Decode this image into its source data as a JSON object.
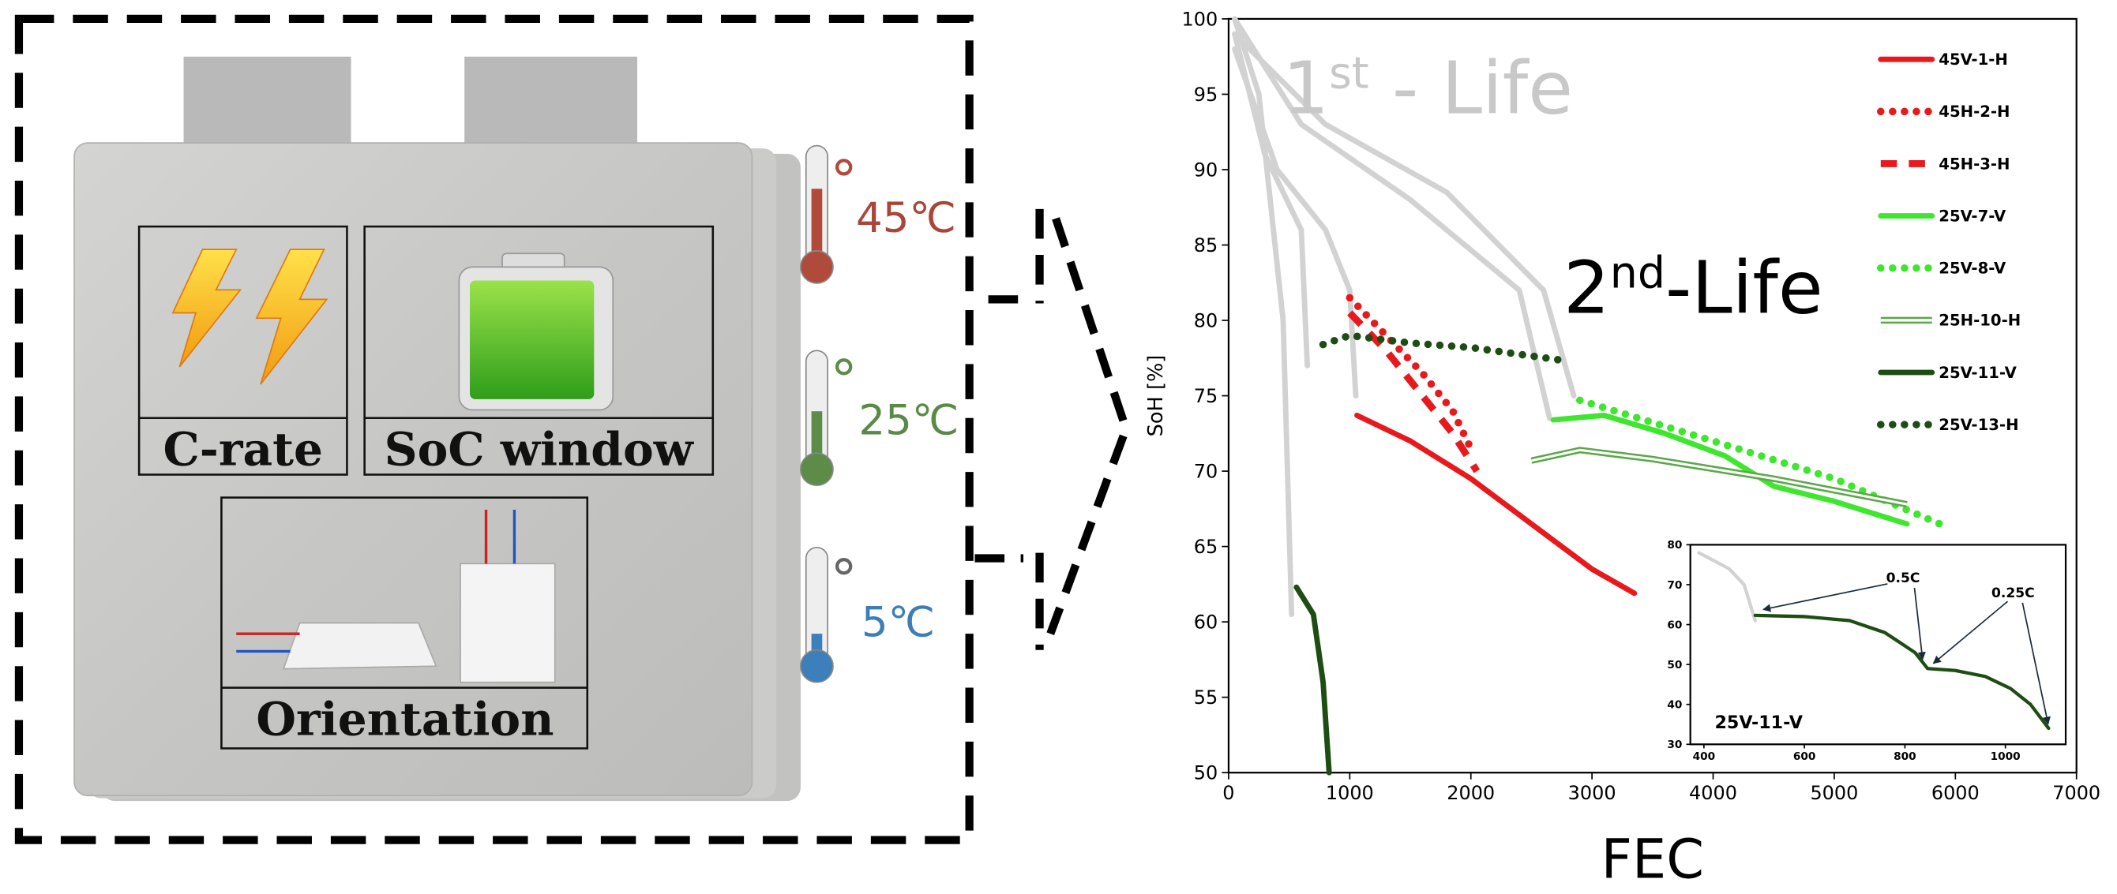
{
  "panel": {
    "factors": [
      "C-rate",
      "SoC window",
      "Orientation"
    ],
    "temperatures": [
      "45℃",
      "25℃",
      "5℃"
    ]
  },
  "chart_data": [
    {
      "type": "line",
      "xlabel": "FEC",
      "ylabel": "SoH [%]",
      "xlim": [
        0,
        7000
      ],
      "ylim": [
        50,
        100
      ],
      "xticks": [
        0,
        1000,
        2000,
        3000,
        4000,
        5000,
        6000,
        7000
      ],
      "yticks": [
        50,
        55,
        60,
        65,
        70,
        75,
        80,
        85,
        90,
        95,
        100
      ],
      "legend": "upper right",
      "annotations": [
        {
          "parts": [
            "1",
            "st",
            " - Life"
          ]
        },
        {
          "parts": [
            "2",
            "nd",
            "-Life"
          ]
        }
      ],
      "series": [
        {
          "color": "#d2d2d2",
          "style": "solid",
          "x": [
            50,
            250,
            450,
            520
          ],
          "values": [
            100,
            95,
            80,
            60.5
          ]
        },
        {
          "color": "#d2d2d2",
          "style": "solid",
          "x": [
            50,
            300,
            600,
            650
          ],
          "values": [
            99,
            91,
            86,
            77
          ]
        },
        {
          "color": "#d2d2d2",
          "style": "solid",
          "x": [
            50,
            400,
            800,
            1000,
            1050
          ],
          "values": [
            98,
            90,
            86,
            82,
            75
          ]
        },
        {
          "color": "#d2d2d2",
          "style": "solid",
          "x": [
            50,
            600,
            1500,
            2400,
            2650
          ],
          "values": [
            100,
            93,
            88,
            82,
            73.5
          ]
        },
        {
          "color": "#d2d2d2",
          "style": "solid",
          "x": [
            50,
            800,
            1800,
            2600,
            2850
          ],
          "values": [
            99,
            93,
            88.5,
            82,
            75
          ]
        },
        {
          "name": "45V-1-H",
          "color": "#e8191c",
          "style": "solid",
          "x": [
            1060,
            1500,
            2000,
            2500,
            3000,
            3350
          ],
          "values": [
            73.7,
            72,
            69.5,
            66.5,
            63.5,
            61.9
          ]
        },
        {
          "name": "45H-2-H",
          "color": "#e8191c",
          "style": "dotted",
          "x": [
            1000,
            1300,
            1600,
            1850,
            2000
          ],
          "values": [
            81.5,
            79,
            76.5,
            74,
            71.5
          ]
        },
        {
          "name": "45H-3-H",
          "color": "#e8191c",
          "style": "dashed",
          "x": [
            1000,
            1300,
            1600,
            1850,
            2050
          ],
          "values": [
            80.5,
            78,
            75,
            72.5,
            70
          ]
        },
        {
          "name": "25V-7-V",
          "color": "#3ee62e",
          "style": "solid",
          "x": [
            2680,
            3100,
            3600,
            4100,
            4500,
            5000,
            5600
          ],
          "values": [
            73.4,
            73.7,
            72.5,
            71,
            69,
            68,
            66.5
          ]
        },
        {
          "name": "25V-8-V",
          "color": "#3ee62e",
          "style": "dotted",
          "x": [
            2900,
            4000,
            5000,
            5900
          ],
          "values": [
            74.7,
            72,
            69.5,
            66.4
          ]
        },
        {
          "name": "25H-10-H",
          "color": "#5aa84a",
          "style": "double",
          "x": [
            2500,
            2900,
            3500,
            4500,
            5600
          ],
          "values": [
            70.7,
            71.4,
            70.8,
            69.5,
            67.8
          ]
        },
        {
          "name": "25V-11-V",
          "color": "#1e4d14",
          "style": "solid",
          "x": [
            560,
            700,
            780,
            830
          ],
          "values": [
            62.3,
            60.5,
            56,
            50
          ]
        },
        {
          "name": "25V-13-H",
          "color": "#1e4d14",
          "style": "dotted",
          "x": [
            780,
            1000,
            1500,
            2000,
            2800
          ],
          "values": [
            78.4,
            79,
            78.5,
            78.2,
            77.3
          ]
        }
      ]
    },
    {
      "type": "line",
      "title": "25V-11-V",
      "xlim": [
        373,
        1120
      ],
      "ylim": [
        30,
        80
      ],
      "xticks": [
        400,
        600,
        800,
        1000
      ],
      "yticks": [
        30,
        40,
        50,
        60,
        70,
        80
      ],
      "annotations": [
        "0.5C",
        "0.25C"
      ],
      "series": [
        {
          "color": "#d2d2d2",
          "style": "solid",
          "x": [
            390,
            450,
            480,
            502
          ],
          "values": [
            78,
            74,
            70,
            61
          ]
        },
        {
          "color": "#1e4d14",
          "style": "solid",
          "x": [
            502,
            600,
            690,
            760,
            820,
            845,
            900,
            960,
            1010,
            1050,
            1086
          ],
          "values": [
            62.3,
            62,
            61,
            58,
            53,
            49,
            48.5,
            47,
            44,
            40,
            34
          ]
        }
      ]
    }
  ]
}
